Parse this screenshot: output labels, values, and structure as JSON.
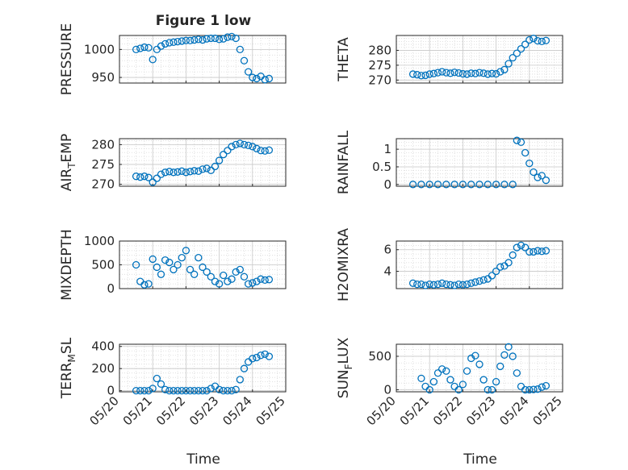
{
  "figure": {
    "title": "Figure 1 low",
    "xlabel": "Time",
    "x_tick_labels": [
      "05/20",
      "05/21",
      "05/22",
      "05/23",
      "05/24",
      "05/25"
    ],
    "marker_color": "#0072BD",
    "grid": "on (major and minor, dotted)"
  },
  "chart_data": [
    {
      "type": "scatter",
      "panel": "PRESSURE",
      "ylabel": "PRESSURE",
      "xlim": [
        "05/20",
        "05/25"
      ],
      "ylim": [
        940,
        1025
      ],
      "y_ticks": [
        950,
        1000
      ],
      "x": [
        "05/20 12:00",
        "05/20 15:00",
        "05/20 18:00",
        "05/20 21:00",
        "05/21 00:00",
        "05/21 03:00",
        "05/21 06:00",
        "05/21 09:00",
        "05/21 12:00",
        "05/21 15:00",
        "05/21 18:00",
        "05/21 21:00",
        "05/22 00:00",
        "05/22 03:00",
        "05/22 06:00",
        "05/22 09:00",
        "05/22 12:00",
        "05/22 15:00",
        "05/22 18:00",
        "05/22 21:00",
        "05/23 00:00",
        "05/23 03:00",
        "05/23 06:00",
        "05/23 09:00",
        "05/23 12:00",
        "05/23 15:00",
        "05/23 18:00",
        "05/23 21:00",
        "05/24 00:00",
        "05/24 03:00",
        "05/24 06:00",
        "05/24 09:00",
        "05/24 12:00"
      ],
      "y": [
        1000,
        1002,
        1004,
        1003,
        982,
        1000,
        1006,
        1010,
        1012,
        1013,
        1014,
        1015,
        1016,
        1016,
        1017,
        1018,
        1017,
        1019,
        1020,
        1020,
        1018,
        1019,
        1022,
        1023,
        1020,
        1000,
        980,
        960,
        950,
        948,
        952,
        946,
        948
      ]
    },
    {
      "type": "scatter",
      "panel": "THETA",
      "ylabel": "THETA",
      "xlim": [
        "05/20",
        "05/25"
      ],
      "ylim": [
        269,
        285
      ],
      "y_ticks": [
        270,
        275,
        280
      ],
      "x": [
        "05/20 12:00",
        "05/20 15:00",
        "05/20 18:00",
        "05/20 21:00",
        "05/21 00:00",
        "05/21 03:00",
        "05/21 06:00",
        "05/21 09:00",
        "05/21 12:00",
        "05/21 15:00",
        "05/21 18:00",
        "05/21 21:00",
        "05/22 00:00",
        "05/22 03:00",
        "05/22 06:00",
        "05/22 09:00",
        "05/22 12:00",
        "05/22 15:00",
        "05/22 18:00",
        "05/22 21:00",
        "05/23 00:00",
        "05/23 03:00",
        "05/23 06:00",
        "05/23 09:00",
        "05/23 12:00",
        "05/23 15:00",
        "05/23 18:00",
        "05/23 21:00",
        "05/24 00:00",
        "05/24 03:00",
        "05/24 06:00",
        "05/24 09:00",
        "05/24 12:00"
      ],
      "y": [
        272.0,
        271.8,
        271.5,
        271.6,
        272.0,
        272.2,
        272.5,
        272.8,
        272.5,
        272.3,
        272.6,
        272.4,
        272.1,
        272.0,
        272.3,
        272.2,
        272.5,
        272.3,
        272.0,
        272.2,
        272.1,
        272.8,
        273.5,
        275.5,
        277.5,
        279.0,
        280.5,
        282.0,
        283.5,
        284.0,
        283.2,
        283.0,
        283.3
      ]
    },
    {
      "type": "scatter",
      "panel": "AIR_TEMP",
      "ylabel": "AIR_TEMP",
      "xlim": [
        "05/20",
        "05/25"
      ],
      "ylim": [
        269.5,
        281.5
      ],
      "y_ticks": [
        270,
        275,
        280
      ],
      "x": [
        "05/20 12:00",
        "05/20 15:00",
        "05/20 18:00",
        "05/20 21:00",
        "05/21 00:00",
        "05/21 03:00",
        "05/21 06:00",
        "05/21 09:00",
        "05/21 12:00",
        "05/21 15:00",
        "05/21 18:00",
        "05/21 21:00",
        "05/22 00:00",
        "05/22 03:00",
        "05/22 06:00",
        "05/22 09:00",
        "05/22 12:00",
        "05/22 15:00",
        "05/22 18:00",
        "05/22 21:00",
        "05/23 00:00",
        "05/23 03:00",
        "05/23 06:00",
        "05/23 09:00",
        "05/23 12:00",
        "05/23 15:00",
        "05/23 18:00",
        "05/23 21:00",
        "05/24 00:00",
        "05/24 03:00",
        "05/24 06:00",
        "05/24 09:00",
        "05/24 12:00"
      ],
      "y": [
        272.0,
        271.8,
        272.0,
        271.7,
        270.5,
        271.5,
        272.5,
        273.0,
        273.2,
        273.0,
        273.1,
        273.3,
        273.0,
        273.2,
        273.4,
        273.3,
        273.8,
        274.0,
        273.5,
        274.5,
        276.0,
        277.5,
        278.5,
        279.5,
        280.0,
        280.3,
        280.0,
        279.8,
        279.5,
        279.0,
        278.5,
        278.4,
        278.6
      ]
    },
    {
      "type": "scatter",
      "panel": "RAINFALL",
      "ylabel": "RAINFALL",
      "xlim": [
        "05/20",
        "05/25"
      ],
      "ylim": [
        -0.05,
        1.3
      ],
      "y_ticks": [
        0,
        0.5,
        1
      ],
      "x": [
        "05/20 12:00",
        "05/20 18:00",
        "05/21 00:00",
        "05/21 06:00",
        "05/21 12:00",
        "05/21 18:00",
        "05/22 00:00",
        "05/22 06:00",
        "05/22 12:00",
        "05/22 18:00",
        "05/23 00:00",
        "05/23 06:00",
        "05/23 12:00",
        "05/23 15:00",
        "05/23 18:00",
        "05/23 21:00",
        "05/24 00:00",
        "05/24 03:00",
        "05/24 06:00",
        "05/24 09:00",
        "05/24 12:00"
      ],
      "y": [
        0,
        0,
        0,
        0,
        0,
        0,
        0,
        0,
        0,
        0,
        0,
        0,
        0,
        1.25,
        1.2,
        0.9,
        0.6,
        0.35,
        0.2,
        0.25,
        0.12
      ]
    },
    {
      "type": "scatter",
      "panel": "MIXDEPTH",
      "ylabel": "MIXDEPTH",
      "xlim": [
        "05/20",
        "05/25"
      ],
      "ylim": [
        0,
        1000
      ],
      "y_ticks": [
        0,
        500,
        1000
      ],
      "x": [
        "05/20 12:00",
        "05/20 15:00",
        "05/20 18:00",
        "05/20 21:00",
        "05/21 00:00",
        "05/21 03:00",
        "05/21 06:00",
        "05/21 09:00",
        "05/21 12:00",
        "05/21 15:00",
        "05/21 18:00",
        "05/21 21:00",
        "05/22 00:00",
        "05/22 03:00",
        "05/22 06:00",
        "05/22 09:00",
        "05/22 12:00",
        "05/22 15:00",
        "05/22 18:00",
        "05/22 21:00",
        "05/23 00:00",
        "05/23 03:00",
        "05/23 06:00",
        "05/23 09:00",
        "05/23 12:00",
        "05/23 15:00",
        "05/23 18:00",
        "05/23 21:00",
        "05/24 00:00",
        "05/24 03:00",
        "05/24 06:00",
        "05/24 09:00",
        "05/24 12:00"
      ],
      "y": [
        500,
        150,
        80,
        100,
        620,
        450,
        300,
        600,
        550,
        400,
        500,
        650,
        800,
        400,
        300,
        650,
        450,
        350,
        250,
        150,
        100,
        280,
        150,
        200,
        350,
        400,
        250,
        100,
        120,
        150,
        200,
        180,
        190
      ]
    },
    {
      "type": "scatter",
      "panel": "H2OMIXRA",
      "ylabel": "H2OMIXRA",
      "xlim": [
        "05/20",
        "05/25"
      ],
      "ylim": [
        2.4,
        6.8
      ],
      "y_ticks": [
        4,
        6
      ],
      "x": [
        "05/20 12:00",
        "05/20 15:00",
        "05/20 18:00",
        "05/20 21:00",
        "05/21 00:00",
        "05/21 03:00",
        "05/21 06:00",
        "05/21 09:00",
        "05/21 12:00",
        "05/21 15:00",
        "05/21 18:00",
        "05/21 21:00",
        "05/22 00:00",
        "05/22 03:00",
        "05/22 06:00",
        "05/22 09:00",
        "05/22 12:00",
        "05/22 15:00",
        "05/22 18:00",
        "05/22 21:00",
        "05/23 00:00",
        "05/23 03:00",
        "05/23 06:00",
        "05/23 09:00",
        "05/23 12:00",
        "05/23 15:00",
        "05/23 18:00",
        "05/23 21:00",
        "05/24 00:00",
        "05/24 03:00",
        "05/24 06:00",
        "05/24 09:00",
        "05/24 12:00"
      ],
      "y": [
        2.9,
        2.8,
        2.8,
        2.7,
        2.8,
        2.75,
        2.8,
        2.9,
        2.8,
        2.75,
        2.7,
        2.8,
        2.75,
        2.8,
        2.9,
        3.0,
        3.1,
        3.2,
        3.3,
        3.6,
        4.0,
        4.4,
        4.5,
        4.8,
        5.5,
        6.2,
        6.4,
        6.2,
        5.8,
        5.8,
        5.9,
        5.85,
        5.9
      ]
    },
    {
      "type": "scatter",
      "panel": "TERR_MSL",
      "ylabel": "TERR_MSL",
      "xlim": [
        "05/20",
        "05/25"
      ],
      "ylim": [
        -10,
        420
      ],
      "y_ticks": [
        0,
        200,
        400
      ],
      "x_tick_labels_shown": true,
      "x": [
        "05/20 12:00",
        "05/20 15:00",
        "05/20 18:00",
        "05/20 21:00",
        "05/21 00:00",
        "05/21 03:00",
        "05/21 06:00",
        "05/21 09:00",
        "05/21 12:00",
        "05/21 15:00",
        "05/21 18:00",
        "05/21 21:00",
        "05/22 00:00",
        "05/22 03:00",
        "05/22 06:00",
        "05/22 09:00",
        "05/22 12:00",
        "05/22 15:00",
        "05/22 18:00",
        "05/22 21:00",
        "05/23 00:00",
        "05/23 03:00",
        "05/23 06:00",
        "05/23 09:00",
        "05/23 12:00",
        "05/23 15:00",
        "05/23 18:00",
        "05/23 21:00",
        "05/24 00:00",
        "05/24 03:00",
        "05/24 06:00",
        "05/24 09:00",
        "05/24 12:00"
      ],
      "y": [
        0,
        0,
        0,
        0,
        20,
        110,
        60,
        10,
        0,
        0,
        0,
        0,
        0,
        0,
        0,
        0,
        0,
        0,
        20,
        40,
        10,
        0,
        0,
        0,
        10,
        100,
        200,
        260,
        290,
        300,
        320,
        330,
        310
      ]
    },
    {
      "type": "scatter",
      "panel": "SUN_FLUX",
      "ylabel": "SUN_FLUX",
      "xlim": [
        "05/20",
        "05/25"
      ],
      "ylim": [
        -30,
        680
      ],
      "y_ticks": [
        0,
        500
      ],
      "x_tick_labels_shown": true,
      "x": [
        "05/20 18:00",
        "05/20 21:00",
        "05/21 00:00",
        "05/21 03:00",
        "05/21 06:00",
        "05/21 09:00",
        "05/21 12:00",
        "05/21 15:00",
        "05/21 18:00",
        "05/21 21:00",
        "05/22 00:00",
        "05/22 03:00",
        "05/22 06:00",
        "05/22 09:00",
        "05/22 12:00",
        "05/22 15:00",
        "05/22 18:00",
        "05/22 21:00",
        "05/23 00:00",
        "05/23 03:00",
        "05/23 06:00",
        "05/23 09:00",
        "05/23 12:00",
        "05/23 15:00",
        "05/23 18:00",
        "05/23 21:00",
        "05/24 00:00",
        "05/24 03:00",
        "05/24 06:00",
        "05/24 09:00",
        "05/24 12:00"
      ],
      "y": [
        170,
        50,
        0,
        120,
        250,
        310,
        280,
        150,
        50,
        0,
        80,
        280,
        470,
        510,
        380,
        150,
        0,
        0,
        120,
        350,
        520,
        640,
        500,
        250,
        50,
        0,
        0,
        5,
        10,
        40,
        60
      ]
    }
  ]
}
